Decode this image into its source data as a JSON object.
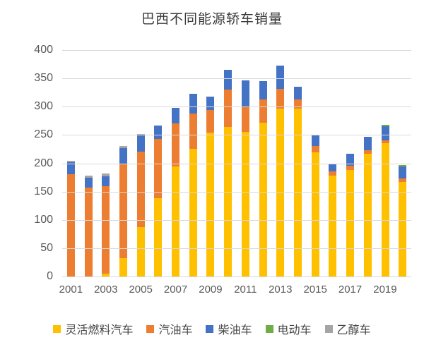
{
  "chart_data": {
    "type": "bar",
    "stacked": true,
    "title": "巴西不同能源轿车销量",
    "xlabel": "",
    "ylabel": "",
    "ylim": [
      0,
      400
    ],
    "yticks": [
      0,
      50,
      100,
      150,
      200,
      250,
      300,
      350,
      400
    ],
    "grid": true,
    "legend_position": "bottom",
    "categories": [
      "2001",
      "2002",
      "2003",
      "2004",
      "2005",
      "2006",
      "2007",
      "2008",
      "2009",
      "2010",
      "2011",
      "2012",
      "2013",
      "2014",
      "2015",
      "2016",
      "2017",
      "2018",
      "2019",
      "2020"
    ],
    "x_tick_labels": [
      "2001",
      "2003",
      "2005",
      "2007",
      "2009",
      "2011",
      "2013",
      "2015",
      "2017",
      "2019"
    ],
    "series": [
      {
        "name": "灵活燃料汽车",
        "color": "#FFC000",
        "values": [
          0,
          0,
          5,
          32,
          87,
          138,
          194,
          225,
          254,
          264,
          256,
          272,
          296,
          296,
          219,
          178,
          188,
          217,
          236,
          167
        ]
      },
      {
        "name": "汽油车",
        "color": "#ED7D31",
        "values": [
          181,
          157,
          155,
          168,
          134,
          105,
          76,
          63,
          40,
          66,
          44,
          41,
          36,
          17,
          11,
          8,
          8,
          6,
          5,
          6
        ]
      },
      {
        "name": "柴油车",
        "color": "#4472C4",
        "values": [
          21,
          17,
          17,
          27,
          28,
          24,
          28,
          35,
          24,
          35,
          46,
          32,
          41,
          22,
          19,
          12,
          21,
          24,
          25,
          21
        ]
      },
      {
        "name": "电动车",
        "color": "#70AD47",
        "values": [
          0,
          0,
          0,
          0,
          0,
          0,
          0,
          0,
          0,
          0,
          0,
          0,
          0,
          0,
          0,
          0,
          0,
          0,
          2,
          3
        ]
      },
      {
        "name": "乙醇车",
        "color": "#A5A5A5",
        "values": [
          2,
          4,
          5,
          4,
          3,
          0,
          0,
          0,
          0,
          0,
          0,
          0,
          0,
          0,
          0,
          0,
          0,
          0,
          0,
          0
        ]
      }
    ]
  }
}
